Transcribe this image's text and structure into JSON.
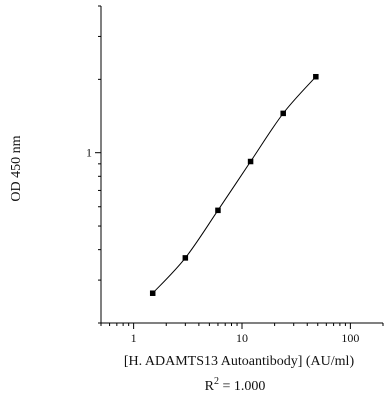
{
  "chart_data": {
    "type": "scatter",
    "x_scale": "log",
    "y_scale": "log",
    "xlabel": "[H. ADAMTS13 Autoantibody] (AU/ml)",
    "ylabel": "OD 450 nm",
    "x_ticks": [
      "1",
      "10",
      "100"
    ],
    "y_ticks": [
      "1"
    ],
    "xlim": [
      0.5,
      200
    ],
    "ylim": [
      0.2,
      4.0
    ],
    "series": [
      {
        "points": [
          {
            "x": 1.5,
            "y": 0.265
          },
          {
            "x": 3.0,
            "y": 0.37
          },
          {
            "x": 6.0,
            "y": 0.58
          },
          {
            "x": 12.0,
            "y": 0.92
          },
          {
            "x": 24.0,
            "y": 1.45
          },
          {
            "x": 48.0,
            "y": 2.05
          }
        ],
        "fit_line": true,
        "color": "#000000"
      }
    ],
    "annotation": {
      "prefix": "R",
      "superscript": "2",
      "suffix": " = 1.000"
    }
  }
}
